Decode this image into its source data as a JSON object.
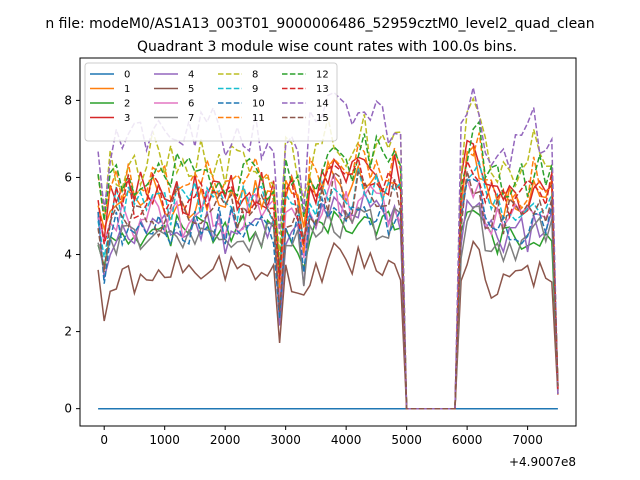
{
  "chart_data": {
    "type": "line",
    "suptitle": "n file: modeM0/AS1A13_003T01_9000006486_52959cztM0_level2_quad_clean",
    "title": "Quadrant 3 module wise count rates with 100.0s bins.",
    "xlabel": "",
    "ylabel": "",
    "x_offset_label": "+4.9007e8",
    "xlim": [
      -400,
      7800
    ],
    "ylim": [
      -0.45,
      9.1
    ],
    "x_ticks": [
      0,
      1000,
      2000,
      3000,
      4000,
      5000,
      6000,
      7000
    ],
    "y_ticks": [
      0,
      2,
      4,
      6,
      8
    ],
    "grid": false,
    "legend_position": "top-left",
    "legend_columns": 4,
    "x_start": -100,
    "x_step": 100,
    "n_points": 77,
    "gap_range": [
      5000,
      5800
    ],
    "series": [
      {
        "name": "0",
        "color": "#1f77b4",
        "dash": "solid",
        "values_note": "constant",
        "base": 0.0,
        "amp": 0.0,
        "seed": 0
      },
      {
        "name": "1",
        "color": "#ff7f0e",
        "dash": "solid",
        "base": 5.4,
        "amp": 0.55,
        "seed": 1
      },
      {
        "name": "2",
        "color": "#2ca02c",
        "dash": "solid",
        "base": 4.5,
        "amp": 0.45,
        "seed": 2
      },
      {
        "name": "3",
        "color": "#d62728",
        "dash": "solid",
        "base": 5.6,
        "amp": 0.55,
        "seed": 3
      },
      {
        "name": "4",
        "color": "#9467bd",
        "dash": "solid",
        "base": 4.6,
        "amp": 0.5,
        "seed": 4
      },
      {
        "name": "5",
        "color": "#8c564b",
        "dash": "solid",
        "base": 3.4,
        "amp": 0.45,
        "seed": 5
      },
      {
        "name": "6",
        "color": "#e377c2",
        "dash": "solid",
        "base": 5.0,
        "amp": 0.5,
        "seed": 6
      },
      {
        "name": "7",
        "color": "#7f7f7f",
        "dash": "solid",
        "base": 4.4,
        "amp": 0.45,
        "seed": 7
      },
      {
        "name": "8",
        "color": "#bcbd22",
        "dash": "dashed",
        "base": 6.4,
        "amp": 0.6,
        "seed": 8
      },
      {
        "name": "9",
        "color": "#17becf",
        "dash": "dashed",
        "base": 5.3,
        "amp": 0.5,
        "seed": 9
      },
      {
        "name": "10",
        "color": "#1f77b4",
        "dash": "dashed",
        "base": 4.7,
        "amp": 0.5,
        "seed": 10
      },
      {
        "name": "11",
        "color": "#ff7f0e",
        "dash": "dashed",
        "base": 5.8,
        "amp": 0.55,
        "seed": 11
      },
      {
        "name": "12",
        "color": "#2ca02c",
        "dash": "dashed",
        "base": 6.0,
        "amp": 0.55,
        "seed": 12
      },
      {
        "name": "13",
        "color": "#d62728",
        "dash": "dashed",
        "base": 5.5,
        "amp": 0.5,
        "seed": 13
      },
      {
        "name": "14",
        "color": "#9467bd",
        "dash": "dashed",
        "base": 7.0,
        "amp": 0.65,
        "seed": 14
      },
      {
        "name": "15",
        "color": "#8c564b",
        "dash": "dashed",
        "base": 5.1,
        "amp": 0.5,
        "seed": 15
      }
    ]
  }
}
